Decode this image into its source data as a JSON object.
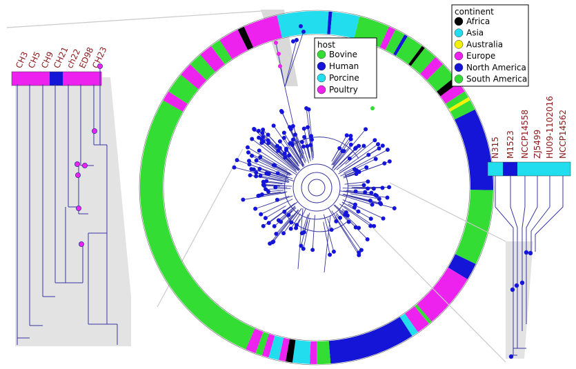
{
  "host_legend": {
    "title": "host",
    "items": [
      {
        "label": "Bovine",
        "color": "#33dd33"
      },
      {
        "label": "Human",
        "color": "#1515d8"
      },
      {
        "label": "Porcine",
        "color": "#22ddee"
      },
      {
        "label": "Poultry",
        "color": "#ee22ee"
      }
    ]
  },
  "continent_legend": {
    "title": "continent",
    "items": [
      {
        "label": "Africa",
        "color": "#000000"
      },
      {
        "label": "Asia",
        "color": "#22ddee"
      },
      {
        "label": "Australia",
        "color": "#f2f200"
      },
      {
        "label": "Europe",
        "color": "#ee22ee"
      },
      {
        "label": "North America",
        "color": "#1515d8"
      },
      {
        "label": "South America",
        "color": "#33dd33"
      }
    ]
  },
  "left_zoom": {
    "tips": [
      {
        "label": "CH3",
        "color": "#ee22ee"
      },
      {
        "label": "CH5",
        "color": "#ee22ee"
      },
      {
        "label": "CH9",
        "color": "#ee22ee"
      },
      {
        "label": "CH21",
        "color": "#1515d8"
      },
      {
        "label": "ch22",
        "color": "#ee22ee"
      },
      {
        "label": "ED98",
        "color": "#ee22ee"
      },
      {
        "label": "CH23",
        "color": "#ee22ee"
      }
    ]
  },
  "right_zoom": {
    "tips": [
      {
        "label": "N315",
        "color": "#22ddee"
      },
      {
        "label": "M1523",
        "color": "#1515d8"
      },
      {
        "label": "NCCP14558",
        "color": "#22ddee"
      },
      {
        "label": "ZJ5499",
        "color": "#22ddee"
      },
      {
        "label": "HU09-1102016",
        "color": "#22ddee"
      },
      {
        "label": "NCCP14562",
        "color": "#22ddee"
      }
    ]
  },
  "ring_sectors": [
    {
      "continent": "Asia",
      "span": 15
    },
    {
      "continent": "North America",
      "span": 1
    },
    {
      "continent": "Asia",
      "span": 8
    },
    {
      "continent": "South America",
      "span": 9
    },
    {
      "continent": "Europe",
      "span": 2
    },
    {
      "continent": "South America",
      "span": 3
    },
    {
      "continent": "North America",
      "span": 1
    },
    {
      "continent": "South America",
      "span": 5
    },
    {
      "continent": "Africa",
      "span": 1
    },
    {
      "continent": "South America",
      "span": 4
    },
    {
      "continent": "Europe",
      "span": 3
    },
    {
      "continent": "South America",
      "span": 5
    },
    {
      "continent": "Africa",
      "span": 2
    },
    {
      "continent": "Europe",
      "span": 3
    },
    {
      "continent": "South America",
      "span": 2
    },
    {
      "continent": "Australia",
      "span": 1
    },
    {
      "continent": "South America",
      "span": 3
    },
    {
      "continent": "North America",
      "span": 24
    },
    {
      "continent": "South America",
      "span": 22
    },
    {
      "continent": "North America",
      "span": 5
    },
    {
      "continent": "Europe",
      "span": 16
    },
    {
      "continent": "South America",
      "span": 1
    },
    {
      "continent": "Europe",
      "span": 4
    },
    {
      "continent": "Asia",
      "span": 2
    },
    {
      "continent": "North America",
      "span": 25
    },
    {
      "continent": "South America",
      "span": 4
    },
    {
      "continent": "Europe",
      "span": 2
    },
    {
      "continent": "Asia",
      "span": 5
    },
    {
      "continent": "Africa",
      "span": 2
    },
    {
      "continent": "Europe",
      "span": 2
    },
    {
      "continent": "Asia",
      "span": 3
    },
    {
      "continent": "Europe",
      "span": 2
    },
    {
      "continent": "South America",
      "span": 2
    },
    {
      "continent": "Europe",
      "span": 3
    },
    {
      "continent": "South America",
      "span": 85
    },
    {
      "continent": "Europe",
      "span": 3
    },
    {
      "continent": "South America",
      "span": 6
    },
    {
      "continent": "Europe",
      "span": 4
    },
    {
      "continent": "South America",
      "span": 4
    },
    {
      "continent": "Europe",
      "span": 4
    },
    {
      "continent": "South America",
      "span": 3
    },
    {
      "continent": "Europe",
      "span": 6
    },
    {
      "continent": "Africa",
      "span": 2
    },
    {
      "continent": "Europe",
      "span": 10
    }
  ]
}
